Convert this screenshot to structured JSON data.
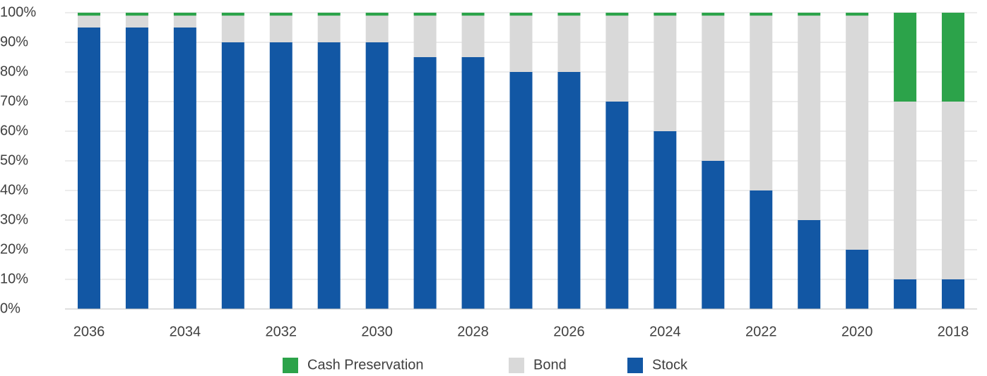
{
  "chart_data": {
    "type": "stacked_bar",
    "categories": [
      "2036",
      null,
      "2034",
      null,
      "2032",
      null,
      "2030",
      null,
      "2028",
      null,
      "2026",
      null,
      "2024",
      null,
      "2022",
      null,
      "2020",
      null,
      "2018"
    ],
    "series": [
      {
        "name": "Stock",
        "color": "#1257a4",
        "values": [
          95,
          95,
          95,
          90,
          90,
          90,
          90,
          85,
          85,
          80,
          80,
          70,
          60,
          50,
          40,
          30,
          20,
          10,
          10
        ]
      },
      {
        "name": "Bond",
        "color": "#d9d9d9",
        "values": [
          4,
          4,
          4,
          9,
          9,
          9,
          9,
          14,
          14,
          19,
          19,
          29,
          39,
          49,
          59,
          69,
          79,
          60,
          60
        ]
      },
      {
        "name": "Cash Preservation",
        "color": "#2ca34a",
        "values": [
          1,
          1,
          1,
          1,
          1,
          1,
          1,
          1,
          1,
          1,
          1,
          1,
          1,
          1,
          1,
          1,
          1,
          30,
          30
        ]
      }
    ],
    "ylim": [
      0,
      100
    ],
    "yticks": [
      {
        "value": 0,
        "label": "0%"
      },
      {
        "value": 10,
        "label": "10%"
      },
      {
        "value": 20,
        "label": "20%"
      },
      {
        "value": 30,
        "label": "30%"
      },
      {
        "value": 40,
        "label": "40%"
      },
      {
        "value": 50,
        "label": "50%"
      },
      {
        "value": 60,
        "label": "60%"
      },
      {
        "value": 70,
        "label": "70%"
      },
      {
        "value": 80,
        "label": "80%"
      },
      {
        "value": 90,
        "label": "90%"
      },
      {
        "value": 100,
        "label": "100%"
      }
    ],
    "grid": true,
    "legend": "bottom"
  }
}
